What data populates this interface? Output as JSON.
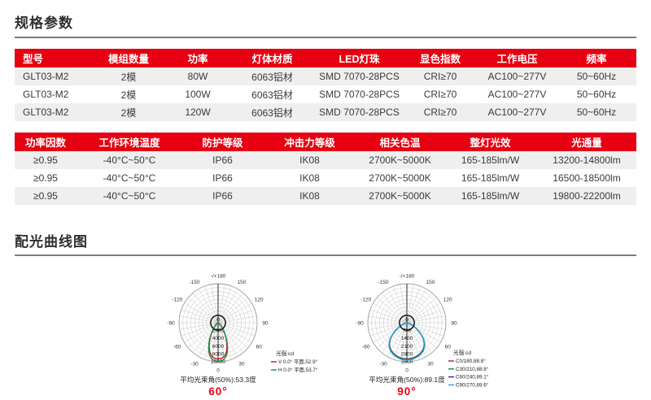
{
  "sections": {
    "specs_title": "规格参数",
    "curves_title": "配光曲线图"
  },
  "colors": {
    "accent": "#e60012",
    "header_text": "#ffffff",
    "row_alt": "#efefef",
    "rule": "#7c7c7c",
    "text": "#3a3a3a"
  },
  "table1": {
    "headers": [
      "型号",
      "模组数量",
      "功率",
      "灯体材质",
      "LED灯珠",
      "显色指数",
      "工作电压",
      "频率"
    ],
    "rows": [
      [
        "GLT03-M2",
        "2模",
        "80W",
        "6063铝材",
        "SMD 7070-28PCS",
        "CRI≥70",
        "AC100~277V",
        "50~60Hz"
      ],
      [
        "GLT03-M2",
        "2模",
        "100W",
        "6063铝材",
        "SMD 7070-28PCS",
        "CRI≥70",
        "AC100~277V",
        "50~60Hz"
      ],
      [
        "GLT03-M2",
        "2模",
        "120W",
        "6063铝材",
        "SMD 7070-28PCS",
        "CRI≥70",
        "AC100~277V",
        "50~60Hz"
      ]
    ]
  },
  "table2": {
    "headers": [
      "功率因数",
      "工作环境温度",
      "防护等级",
      "冲击力等级",
      "相关色温",
      "整灯光效",
      "光通量"
    ],
    "rows": [
      [
        "≥0.95",
        "-40°C~50°C",
        "IP66",
        "IK08",
        "2700K~5000K",
        "165-185lm/W",
        "13200-14800lm"
      ],
      [
        "≥0.95",
        "-40°C~50°C",
        "IP66",
        "IK08",
        "2700K~5000K",
        "165-185lm/W",
        "16500-18500lm"
      ],
      [
        "≥0.95",
        "-40°C~50°C",
        "IP66",
        "IK08",
        "2700K~5000K",
        "165-185lm/W",
        "19800-22200lm"
      ]
    ]
  },
  "chart_data": [
    {
      "type": "polar",
      "unit_label": "光强:cd",
      "r_max": 10000,
      "r_ticks": [
        2000,
        4000,
        6000,
        8000,
        10000
      ],
      "r_zero_label": "0",
      "angle_labels": [
        [
          0,
          "0"
        ],
        [
          30,
          "30"
        ],
        [
          60,
          "60"
        ],
        [
          90,
          "90"
        ],
        [
          120,
          "120"
        ],
        [
          150,
          "150"
        ],
        [
          180,
          "-/+180"
        ],
        [
          -30,
          "-30"
        ],
        [
          -60,
          "-60"
        ],
        [
          -90,
          "-90"
        ],
        [
          -120,
          "-120"
        ],
        [
          -150,
          "-150"
        ]
      ],
      "profile": [
        [
          0,
          1
        ],
        [
          5,
          0.99
        ],
        [
          10,
          0.95
        ],
        [
          15,
          0.86
        ],
        [
          20,
          0.72
        ],
        [
          26.5,
          0.5
        ],
        [
          32,
          0.33
        ],
        [
          38,
          0.19
        ],
        [
          45,
          0.1
        ],
        [
          55,
          0.04
        ],
        [
          65,
          0.015
        ],
        [
          75,
          0.006
        ],
        [
          90,
          0
        ]
      ],
      "series": [
        {
          "name": "V 0.0° 平面,52.9°",
          "color": "#c81022",
          "peak": 9300,
          "beam_angle": 52.9
        },
        {
          "name": "H 0.0° 平面,53.7°",
          "color": "#1a9146",
          "peak": 9900,
          "beam_angle": 53.7
        }
      ],
      "beam_label": "平均光束角(50%):53.3度",
      "beam_value": "60°"
    },
    {
      "type": "polar",
      "unit_label": "光强:cd",
      "r_max": 3500,
      "r_ticks": [
        700,
        1400,
        2100,
        2800,
        3500
      ],
      "r_zero_label": "0",
      "angle_labels": [
        [
          0,
          "0"
        ],
        [
          30,
          "30"
        ],
        [
          60,
          "60"
        ],
        [
          90,
          "90"
        ],
        [
          120,
          "120"
        ],
        [
          150,
          "150"
        ],
        [
          180,
          "-/+180"
        ],
        [
          -30,
          "-30"
        ],
        [
          -60,
          "-60"
        ],
        [
          -90,
          "-90"
        ],
        [
          -120,
          "-120"
        ],
        [
          -150,
          "-150"
        ]
      ],
      "profile": [
        [
          0,
          1
        ],
        [
          10,
          0.985
        ],
        [
          20,
          0.945
        ],
        [
          30,
          0.875
        ],
        [
          38,
          0.78
        ],
        [
          44.5,
          0.66
        ],
        [
          50,
          0.52
        ],
        [
          56,
          0.36
        ],
        [
          62,
          0.22
        ],
        [
          70,
          0.1
        ],
        [
          78,
          0.04
        ],
        [
          85,
          0.012
        ],
        [
          90,
          0
        ]
      ],
      "series": [
        {
          "name": "C0/180,88.8°",
          "color": "#d01020",
          "peak": 3250,
          "beam_angle": 88.8
        },
        {
          "name": "C30/210,88.8°",
          "color": "#0d8a3c",
          "peak": 3280,
          "beam_angle": 88.8
        },
        {
          "name": "C60/240,89.1°",
          "color": "#23328f",
          "peak": 3320,
          "beam_angle": 89.1
        },
        {
          "name": "C90/270,89.6°",
          "color": "#2aa7df",
          "peak": 3350,
          "beam_angle": 89.6
        }
      ],
      "beam_label": "平均光束角(50%):89.1度",
      "beam_value": "90°"
    }
  ]
}
